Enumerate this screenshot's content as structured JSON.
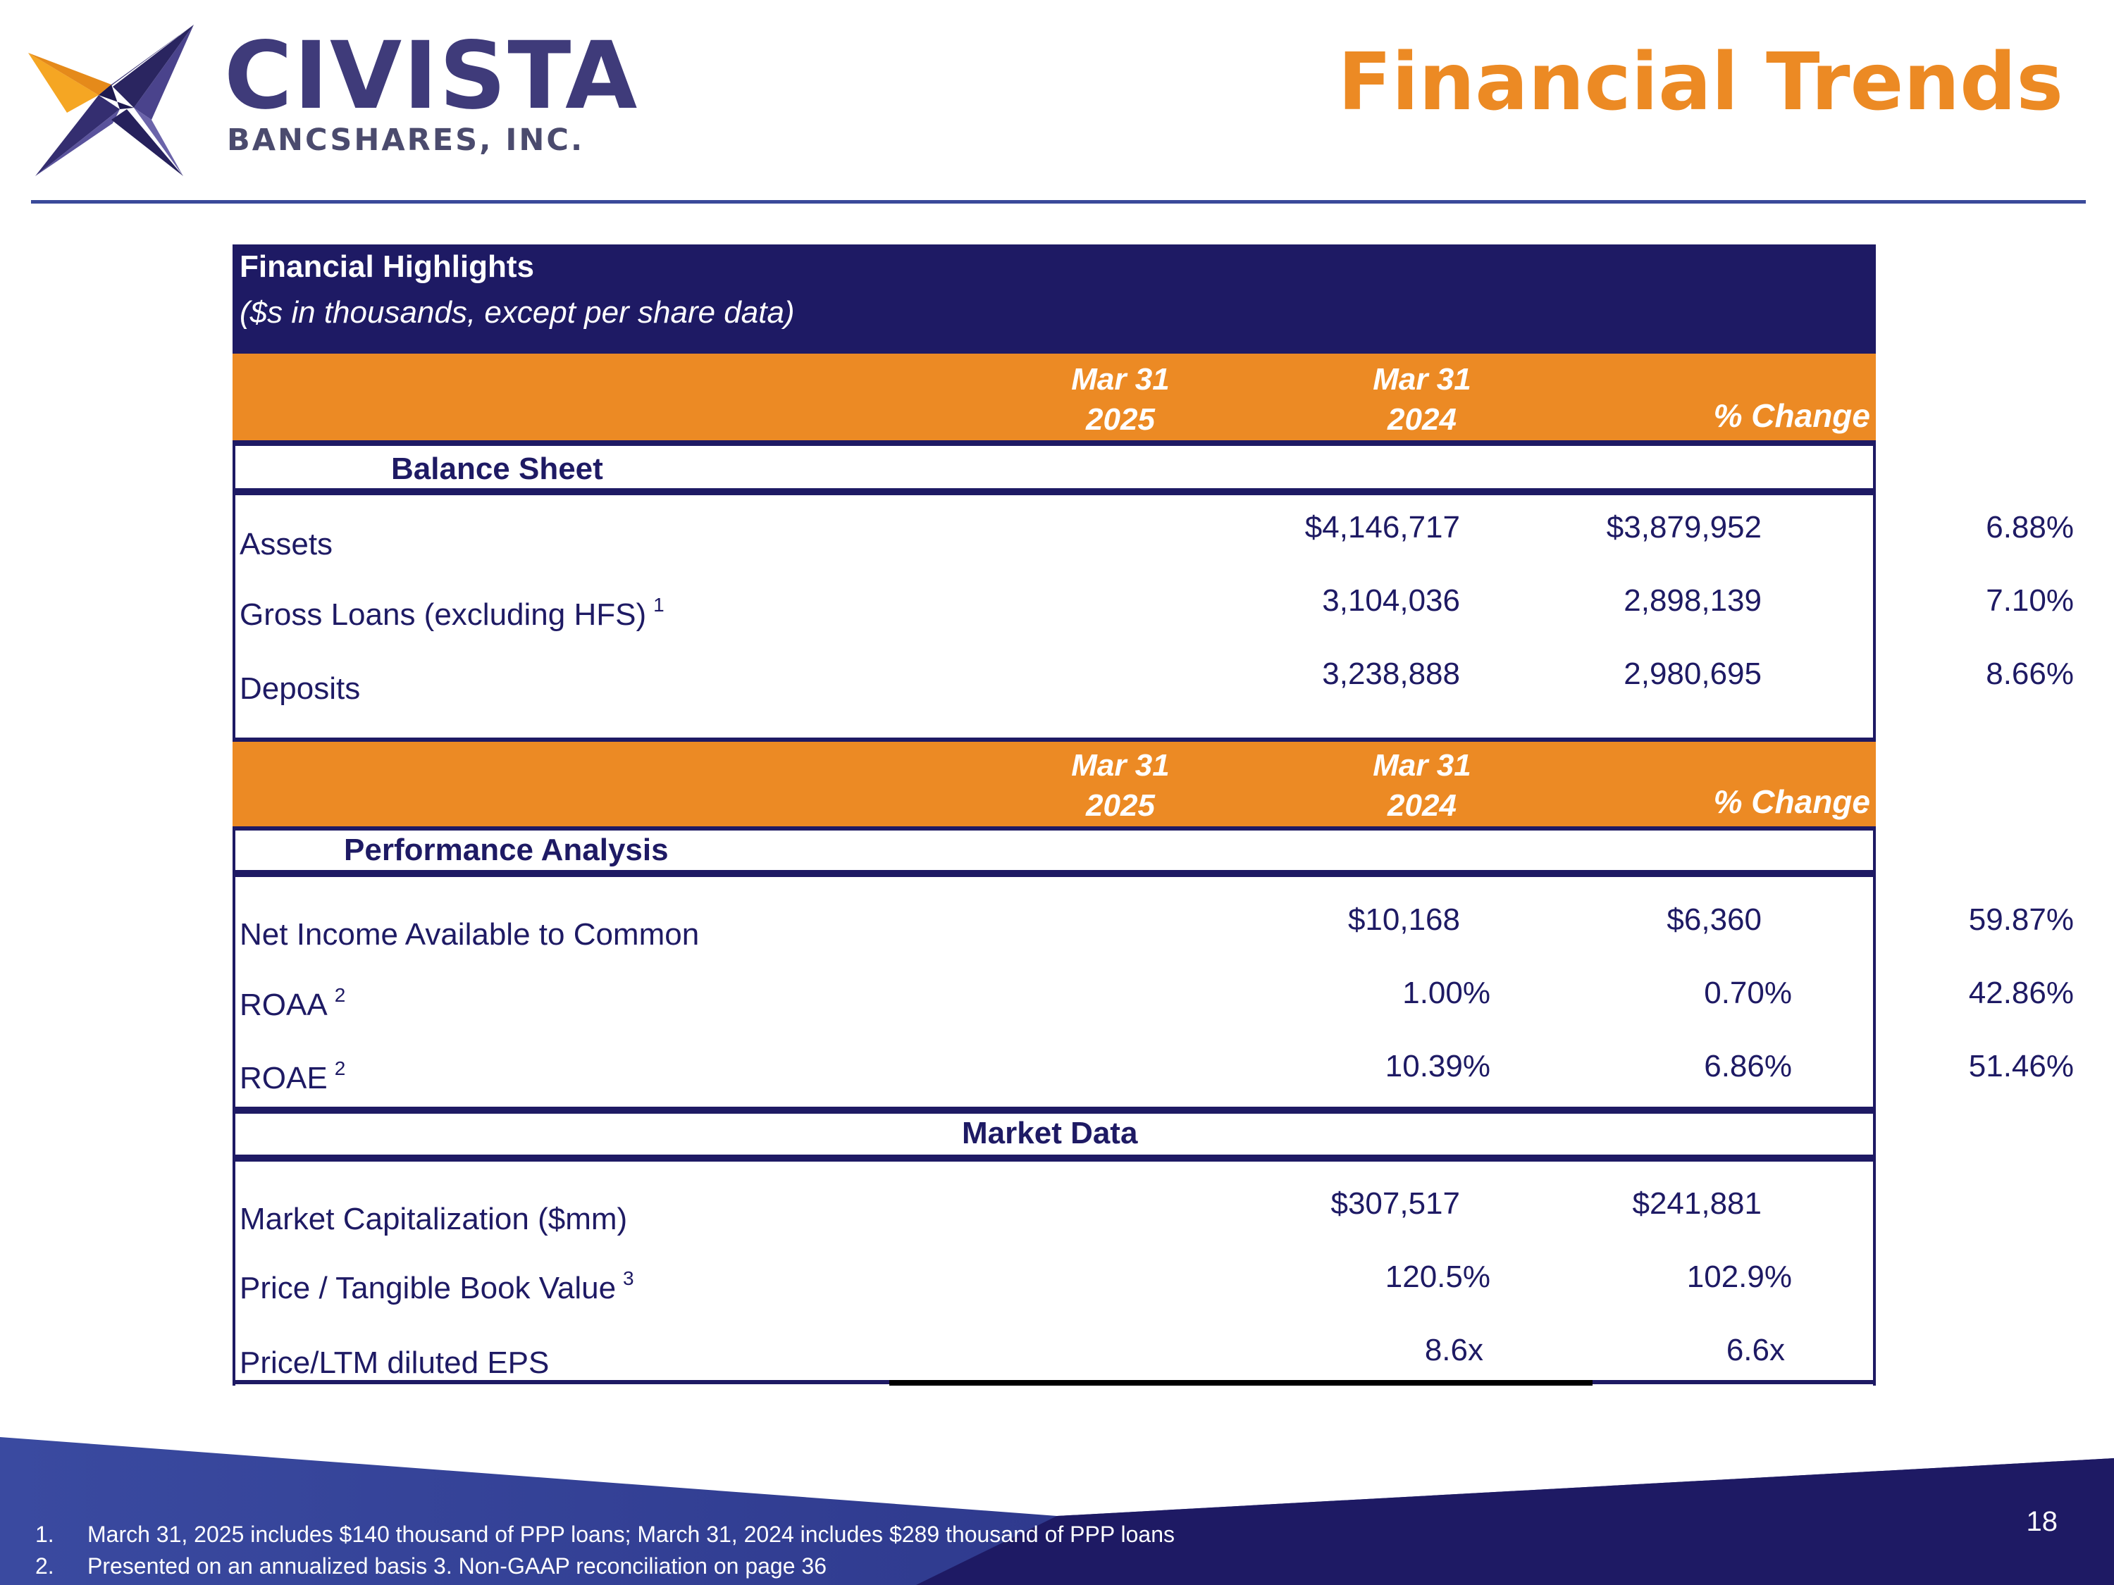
{
  "logo": {
    "name": "CIVISTA",
    "subtitle": "BANCSHARES, INC."
  },
  "page": {
    "title": "Financial Trends",
    "number": "18"
  },
  "table": {
    "title": "Financial Highlights",
    "subtitle": "($s in thousands, except per share data)",
    "balance_header": {
      "col1_line1": "Mar 31",
      "col1_line2": "2025",
      "col2_line1": "Mar 31",
      "col2_line2": "2024",
      "change": "% Change"
    },
    "balance_section": "Balance Sheet",
    "balance_rows": [
      {
        "label": "Assets",
        "sup": "",
        "v2025": "$4,146,717",
        "v2024": "$3,879,952",
        "change": "6.88%"
      },
      {
        "label": "Gross Loans (excluding HFS)",
        "sup": "1",
        "v2025": "3,104,036",
        "v2024": "2,898,139",
        "change": "7.10%"
      },
      {
        "label": "Deposits",
        "sup": "",
        "v2025": "3,238,888",
        "v2024": "2,980,695",
        "change": "8.66%"
      }
    ],
    "perf_header": {
      "col1_line1": "Mar 31",
      "col1_line2": "2025",
      "col2_line1": "Mar 31",
      "col2_line2": "2024",
      "change": "% Change"
    },
    "perf_section": "Performance Analysis",
    "perf_rows": [
      {
        "label": "Net Income Available to Common",
        "sup": "",
        "v2025": "$10,168",
        "v2024": "$6,360",
        "change": "59.87%"
      },
      {
        "label": "ROAA",
        "sup": "2",
        "v2025": "1.00%",
        "v2024": "0.70%",
        "change": "42.86%"
      },
      {
        "label": "ROAE",
        "sup": "2",
        "v2025": "10.39%",
        "v2024": "6.86%",
        "change": "51.46%"
      }
    ],
    "market_section": "Market Data",
    "market_rows": [
      {
        "label": "Market Capitalization ($mm)",
        "sup": "",
        "v2025": "$307,517",
        "v2024": "$241,881"
      },
      {
        "label": "Price / Tangible Book Value",
        "sup": "3",
        "v2025": "120.5%",
        "v2024": "102.9%"
      },
      {
        "label": "Price/LTM diluted EPS",
        "sup": "",
        "v2025": "8.6x",
        "v2024": "6.6x"
      }
    ]
  },
  "footnotes": [
    {
      "num": "1.",
      "text": "March 31, 2025 includes $140 thousand of PPP loans; March 31, 2024 includes $289 thousand of PPP loans"
    },
    {
      "num": "2.",
      "text": "Presented on an annualized basis  3. Non-GAAP reconciliation on page 36"
    }
  ],
  "colors": {
    "navy": "#1e1a64",
    "orange": "#ec8a24",
    "rule": "#3a4a9a"
  }
}
